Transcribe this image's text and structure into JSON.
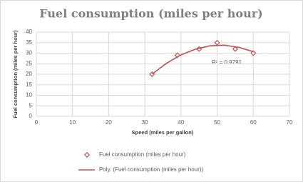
{
  "chart_data": {
    "type": "scatter",
    "title": "Fuel consumption (miles per hour)",
    "x_label": "Speed (miles per gallon)",
    "y_label": "Fuel consumption (miles per hour)",
    "annotation": "R² = 0.9791",
    "xlim": [
      0,
      70
    ],
    "xticks": [
      0,
      10,
      20,
      30,
      40,
      50,
      60,
      70
    ],
    "ylim": [
      0,
      40
    ],
    "yticks": [
      0,
      5,
      10,
      15,
      20,
      25,
      30,
      35,
      40
    ],
    "grid": true,
    "legend": "bottom",
    "series": [
      {
        "name": "Fuel consumption (miles per hour)",
        "color": "#c0504d",
        "mode": "markers",
        "x": [
          32,
          39,
          45,
          50,
          55,
          60
        ],
        "values": [
          20,
          29,
          32,
          35,
          32,
          30
        ]
      },
      {
        "name": "Poly. (Fuel consumption (miles per hour))",
        "color": "#c0504d",
        "mode": "line",
        "x": [
          32,
          36,
          40,
          44,
          48,
          52,
          56,
          60
        ],
        "values": [
          20.0,
          25.2,
          29.2,
          31.9,
          33.5,
          33.8,
          32.8,
          30.7
        ]
      }
    ]
  }
}
